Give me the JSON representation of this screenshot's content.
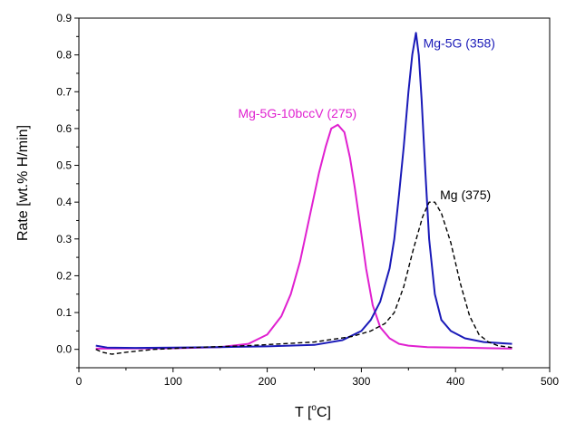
{
  "chart_data": {
    "type": "line",
    "xlabel_main": "T [",
    "xlabel_sup": "o",
    "xlabel_end": "C]",
    "ylabel": "Rate [wt.% H/min]",
    "xlim": [
      0,
      500
    ],
    "ylim": [
      -0.05,
      0.9
    ],
    "x_ticks": [
      "0",
      "100",
      "200",
      "300",
      "400",
      "500"
    ],
    "y_ticks": [
      "0.0",
      "0.1",
      "0.2",
      "0.3",
      "0.4",
      "0.5",
      "0.6",
      "0.7",
      "0.8",
      "0.9"
    ],
    "grid": false,
    "series": [
      {
        "name": "Mg-5G-10bccV (275)",
        "color": "#e020d0",
        "style": "solid",
        "x": [
          18,
          100,
          150,
          180,
          200,
          215,
          225,
          235,
          245,
          255,
          262,
          268,
          275,
          282,
          288,
          293,
          298,
          305,
          312,
          320,
          330,
          340,
          350,
          370,
          400,
          440,
          460
        ],
        "y": [
          0.002,
          0.003,
          0.006,
          0.015,
          0.04,
          0.09,
          0.15,
          0.24,
          0.36,
          0.48,
          0.55,
          0.6,
          0.61,
          0.59,
          0.52,
          0.44,
          0.35,
          0.22,
          0.12,
          0.06,
          0.03,
          0.015,
          0.01,
          0.006,
          0.005,
          0.003,
          0.002
        ]
      },
      {
        "name": "Mg-5G (358)",
        "color": "#1a1ab8",
        "style": "solid",
        "x": [
          18,
          30,
          60,
          100,
          150,
          200,
          250,
          280,
          300,
          310,
          320,
          330,
          335,
          340,
          345,
          350,
          354,
          358,
          361,
          364,
          368,
          372,
          378,
          385,
          395,
          410,
          430,
          460
        ],
        "y": [
          0.01,
          0.005,
          0.004,
          0.005,
          0.006,
          0.008,
          0.012,
          0.025,
          0.05,
          0.08,
          0.13,
          0.22,
          0.3,
          0.42,
          0.55,
          0.7,
          0.8,
          0.86,
          0.8,
          0.68,
          0.48,
          0.3,
          0.15,
          0.08,
          0.05,
          0.03,
          0.02,
          0.015
        ]
      },
      {
        "name": "Mg (375)",
        "color": "#000000",
        "style": "dashed",
        "x": [
          18,
          25,
          35,
          50,
          80,
          120,
          180,
          250,
          290,
          310,
          325,
          335,
          345,
          355,
          365,
          372,
          378,
          385,
          395,
          405,
          415,
          425,
          435,
          445,
          460
        ],
        "y": [
          0.0,
          -0.008,
          -0.013,
          -0.008,
          0.0,
          0.005,
          0.01,
          0.02,
          0.035,
          0.05,
          0.07,
          0.1,
          0.17,
          0.27,
          0.36,
          0.4,
          0.4,
          0.37,
          0.29,
          0.18,
          0.09,
          0.04,
          0.02,
          0.01,
          0.005
        ]
      }
    ]
  }
}
